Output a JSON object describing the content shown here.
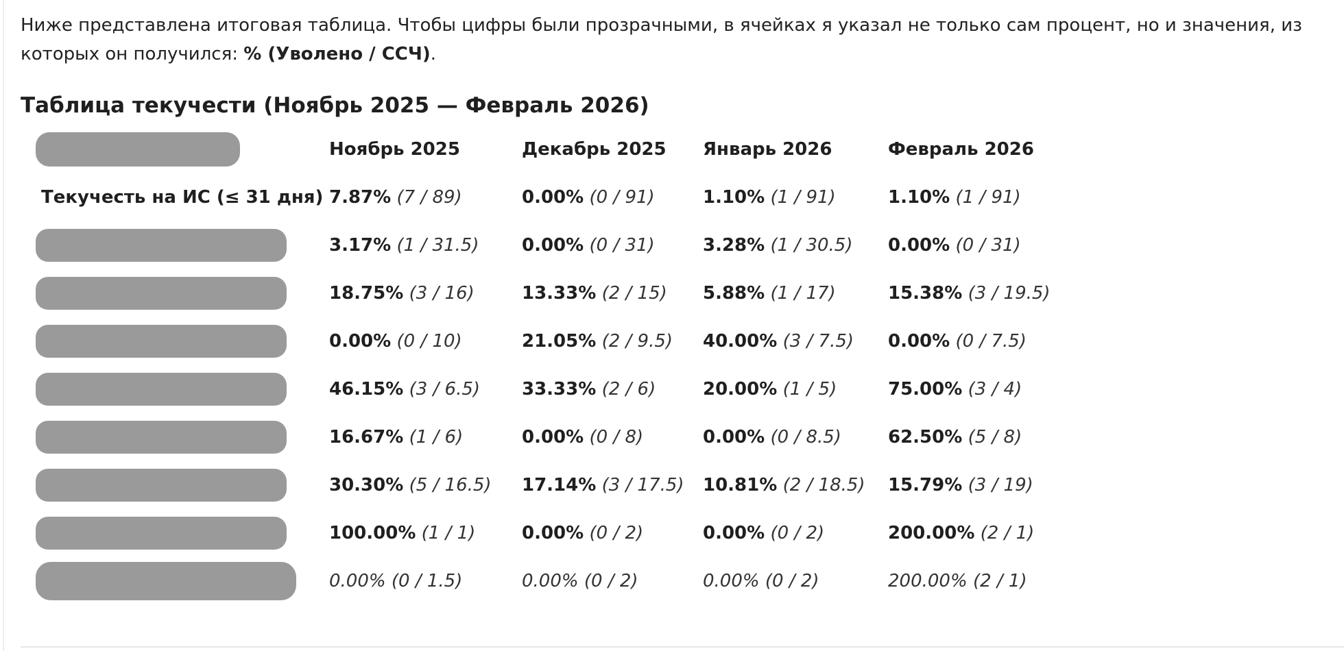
{
  "intro": {
    "text": "Ниже представлена итоговая таблица. Чтобы цифры были прозрачными, в ячейках я указал не только сам процент, но и значения, из которых он получился: ",
    "formula": "% (Уволено / ССЧ)",
    "end": "."
  },
  "table": {
    "title": "Таблица текучести (Ноябрь 2025 — Февраль 2026)",
    "columns": [
      "Ноябрь 2025",
      "Декабрь 2025",
      "Январь 2026",
      "Февраль 2026"
    ],
    "rows": [
      {
        "label": "Текучесть на ИС (≤ 31 дня)",
        "cells": [
          {
            "pct": "7.87%",
            "ratio": "(7 / 89)"
          },
          {
            "pct": "0.00%",
            "ratio": "(0 / 91)"
          },
          {
            "pct": "1.10%",
            "ratio": "(1 / 91)"
          },
          {
            "pct": "1.10%",
            "ratio": "(1 / 91)"
          }
        ]
      },
      {
        "label": "",
        "cells": [
          {
            "pct": "3.17%",
            "ratio": "(1 / 31.5)"
          },
          {
            "pct": "0.00%",
            "ratio": "(0 / 31)"
          },
          {
            "pct": "3.28%",
            "ratio": "(1 / 30.5)"
          },
          {
            "pct": "0.00%",
            "ratio": "(0 / 31)"
          }
        ]
      },
      {
        "label": "",
        "cells": [
          {
            "pct": "18.75%",
            "ratio": "(3 / 16)"
          },
          {
            "pct": "13.33%",
            "ratio": "(2 / 15)"
          },
          {
            "pct": "5.88%",
            "ratio": "(1 / 17)"
          },
          {
            "pct": "15.38%",
            "ratio": "(3 / 19.5)"
          }
        ]
      },
      {
        "label": "",
        "cells": [
          {
            "pct": "0.00%",
            "ratio": "(0 / 10)"
          },
          {
            "pct": "21.05%",
            "ratio": "(2 / 9.5)"
          },
          {
            "pct": "40.00%",
            "ratio": "(3 / 7.5)"
          },
          {
            "pct": "0.00%",
            "ratio": "(0 / 7.5)"
          }
        ]
      },
      {
        "label": "",
        "cells": [
          {
            "pct": "46.15%",
            "ratio": "(3 / 6.5)"
          },
          {
            "pct": "33.33%",
            "ratio": "(2 / 6)"
          },
          {
            "pct": "20.00%",
            "ratio": "(1 / 5)"
          },
          {
            "pct": "75.00%",
            "ratio": "(3 / 4)"
          }
        ]
      },
      {
        "label": "",
        "cells": [
          {
            "pct": "16.67%",
            "ratio": "(1 / 6)"
          },
          {
            "pct": "0.00%",
            "ratio": "(0 / 8)"
          },
          {
            "pct": "0.00%",
            "ratio": "(0 / 8.5)"
          },
          {
            "pct": "62.50%",
            "ratio": "(5 / 8)"
          }
        ]
      },
      {
        "label": "",
        "cells": [
          {
            "pct": "30.30%",
            "ratio": "(5 / 16.5)"
          },
          {
            "pct": "17.14%",
            "ratio": "(3 / 17.5)"
          },
          {
            "pct": "10.81%",
            "ratio": "(2 / 18.5)"
          },
          {
            "pct": "15.79%",
            "ratio": "(3 / 19)"
          }
        ]
      },
      {
        "label": "",
        "cells": [
          {
            "pct": "100.00%",
            "ratio": "(1 / 1)"
          },
          {
            "pct": "0.00%",
            "ratio": "(0 / 2)"
          },
          {
            "pct": "0.00%",
            "ratio": "(0 / 2)"
          },
          {
            "pct": "200.00%",
            "ratio": "(2 / 1)"
          }
        ]
      },
      {
        "label": "",
        "cells": [
          {
            "pct": "0.00%",
            "ratio": "(0 / 1.5)"
          },
          {
            "pct": "0.00%",
            "ratio": "(0 / 2)"
          },
          {
            "pct": "0.00%",
            "ratio": "(0 / 2)"
          },
          {
            "pct": "200.00%",
            "ratio": "(2 / 1)"
          }
        ]
      }
    ]
  },
  "colors": {
    "redaction": "#9a9a9a",
    "text": "#1f1f1f",
    "rule": "#e6e6e6"
  }
}
